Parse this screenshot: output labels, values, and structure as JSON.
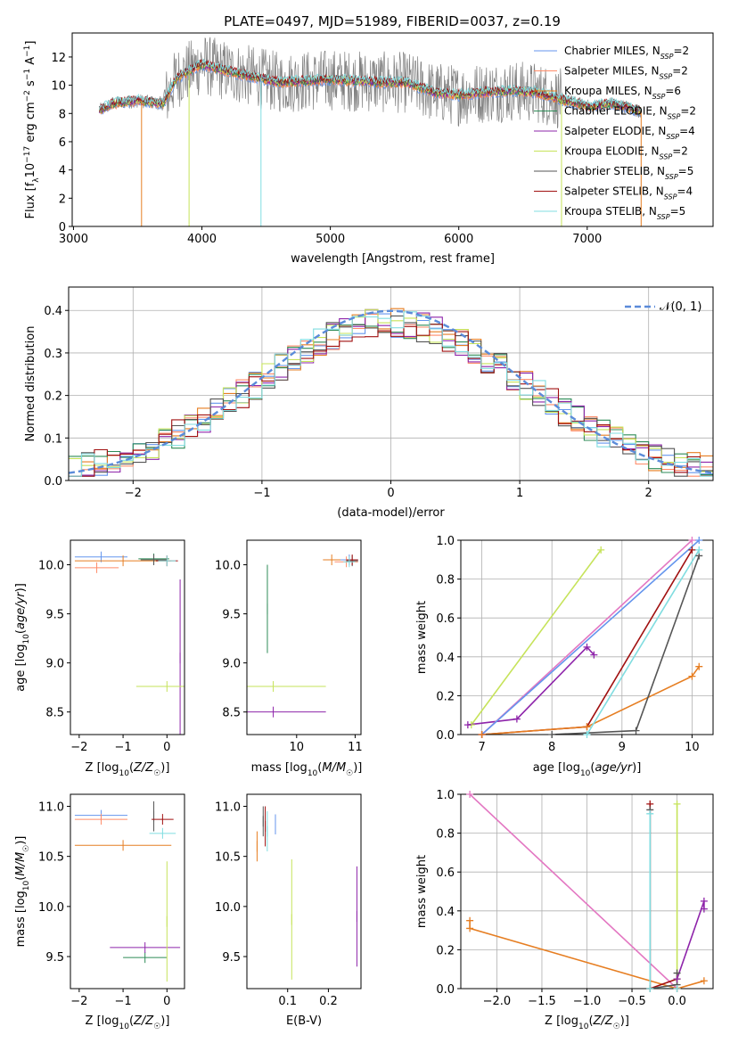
{
  "title": "PLATE=0497, MJD=51989, FIBERID=0037, z=0.19",
  "colors": {
    "Chabrier MILES": "#6495ed",
    "Salpeter MILES": "#ff8c69",
    "Kroupa MILES": "#e67e22",
    "Chabrier ELODIE": "#2e8b57",
    "Salpeter ELODIE": "#8e24aa",
    "Kroupa ELODIE": "#c6e35a",
    "Chabrier STELIB": "#555555",
    "Salpeter STELIB": "#a01010",
    "Kroupa STELIB": "#80dde0",
    "pink": "#e377c2",
    "data": "#808080",
    "normal": "#5b8bd9"
  },
  "chart_data": [
    {
      "type": "line",
      "name": "spectrum",
      "xlabel": "wavelength [Angstrom, rest frame]",
      "ylabel": "Flux [f_λ10^-17 erg cm^-2 s^-1 A^-1]",
      "xlim": [
        2990,
        7980
      ],
      "ylim": [
        0,
        13.7
      ],
      "xticks": [
        3000,
        4000,
        5000,
        6000,
        7000
      ],
      "yticks": [
        0,
        2,
        4,
        6,
        8,
        10,
        12
      ],
      "legend_position": "upper right",
      "legend": [
        {
          "model": "Chabrier MILES",
          "nssp": "2"
        },
        {
          "model": "Salpeter MILES",
          "nssp": "2"
        },
        {
          "model": "Kroupa MILES",
          "nssp": "6"
        },
        {
          "model": "Chabrier ELODIE",
          "nssp": "2"
        },
        {
          "model": "Salpeter ELODIE",
          "nssp": "4"
        },
        {
          "model": "Kroupa ELODIE",
          "nssp": "2"
        },
        {
          "model": "Chabrier STELIB",
          "nssp": "5"
        },
        {
          "model": "Salpeter STELIB",
          "nssp": "4"
        },
        {
          "model": "Kroupa STELIB",
          "nssp": "5"
        }
      ],
      "continuum": {
        "x": [
          3200,
          3300,
          3500,
          3700,
          3800,
          4000,
          4100,
          4400,
          4600,
          5000,
          5400,
          5600,
          5800,
          6000,
          6200,
          6400,
          6600,
          6800,
          7000,
          7200,
          7400
        ],
        "y": [
          8.2,
          8.7,
          8.9,
          8.7,
          10.5,
          11.5,
          11.2,
          10.6,
          10.2,
          10.4,
          10.2,
          10.2,
          9.5,
          9.3,
          9.5,
          9.6,
          9.5,
          9.0,
          8.5,
          8.7,
          8.2
        ]
      },
      "dropouts": [
        {
          "model": "Kroupa MILES",
          "x": 3530
        },
        {
          "model": "Kroupa ELODIE",
          "x": 3900
        },
        {
          "model": "Kroupa STELIB",
          "x": 4460
        },
        {
          "model": "Kroupa ELODIE",
          "x": 6800
        },
        {
          "model": "Kroupa MILES",
          "x": 7420
        }
      ]
    },
    {
      "type": "histogram",
      "name": "residuals",
      "xlabel": "(data-model)/error",
      "ylabel": "Normed distribution",
      "xlim": [
        -2.5,
        2.5
      ],
      "ylim": [
        0,
        0.455
      ],
      "xticks": [
        -2,
        -1,
        0,
        1,
        2
      ],
      "yticks": [
        0.0,
        0.1,
        0.2,
        0.3,
        0.4
      ],
      "bin_width": 0.1,
      "legend": "𝒩(0, 1)",
      "legend_position": "upper right",
      "grid": true
    },
    {
      "type": "scatter",
      "name": "age-Z",
      "xlabel": "Z [log10(Z/Z☉)]",
      "ylabel": "age  [log10(age/yr)]",
      "xlim": [
        -2.2,
        0.4
      ],
      "ylim": [
        8.27,
        10.25
      ],
      "xticks": [
        -2,
        -1,
        0
      ],
      "yticks": [
        8.5,
        9.0,
        9.5,
        10.0
      ],
      "points": [
        {
          "model": "Chabrier MILES",
          "x": -1.5,
          "y": 10.08,
          "xerr": 0.6
        },
        {
          "model": "Salpeter MILES",
          "x": -1.6,
          "y": 9.97,
          "xerr": 0.5
        },
        {
          "model": "Kroupa MILES",
          "x": -1.0,
          "y": 10.04,
          "xerr": 1.1
        },
        {
          "model": "Chabrier ELODIE",
          "x": -0.3,
          "y": 10.06,
          "xerr": 0.35
        },
        {
          "model": "Salpeter ELODIE",
          "x": 0.3,
          "y": 9.05,
          "yerr": 0.8
        },
        {
          "model": "Kroupa ELODIE",
          "x": 0.0,
          "y": 8.76,
          "xerr": 0.7
        },
        {
          "model": "Chabrier STELIB",
          "x": -0.3,
          "y": 10.05,
          "xerr": 0.3
        },
        {
          "model": "Salpeter STELIB",
          "x": 0.0,
          "y": 10.04,
          "xerr": 0.25
        },
        {
          "model": "Kroupa STELIB",
          "x": 0.0,
          "y": 10.04,
          "xerr": 0.2
        }
      ]
    },
    {
      "type": "scatter",
      "name": "age-mass",
      "xlabel": "mass [log10(M/M☉)]",
      "ylabel": "",
      "xlim": [
        9.15,
        11.1
      ],
      "ylim": [
        8.27,
        10.25
      ],
      "xticks": [
        10,
        11
      ],
      "yticks": [
        8.5,
        9.0,
        9.5,
        10.0
      ],
      "points": [
        {
          "model": "Chabrier MILES",
          "x": 10.9,
          "y": 10.05,
          "xerr": 0.15
        },
        {
          "model": "Salpeter MILES",
          "x": 10.85,
          "y": 10.03,
          "xerr": 0.2
        },
        {
          "model": "Kroupa MILES",
          "x": 10.6,
          "y": 10.05,
          "xerr": 0.15
        },
        {
          "model": "Chabrier ELODIE",
          "x": 9.5,
          "y": 9.55,
          "yerr": 0.45
        },
        {
          "model": "Salpeter ELODIE",
          "x": 9.6,
          "y": 8.5,
          "xerr": 0.9
        },
        {
          "model": "Kroupa ELODIE",
          "x": 9.6,
          "y": 8.76,
          "xerr": 0.9
        },
        {
          "model": "Chabrier STELIB",
          "x": 10.95,
          "y": 10.04,
          "xerr": 0.1
        },
        {
          "model": "Salpeter STELIB",
          "x": 10.95,
          "y": 10.05,
          "xerr": 0.1
        },
        {
          "model": "Kroupa STELIB",
          "x": 10.9,
          "y": 10.03,
          "xerr": 0.1
        }
      ]
    },
    {
      "type": "line",
      "name": "mass-weight-age",
      "xlabel": "age  [log10(age/yr)]",
      "ylabel": "mass weight",
      "xlim": [
        6.7,
        10.3
      ],
      "ylim": [
        0,
        1.0
      ],
      "xticks": [
        7,
        8,
        9,
        10
      ],
      "yticks": [
        0.0,
        0.2,
        0.4,
        0.6,
        0.8,
        1.0
      ],
      "grid": true,
      "series": [
        {
          "model": "Kroupa ELODIE",
          "x": [
            6.85,
            8.7
          ],
          "y": [
            0.05,
            0.95
          ]
        },
        {
          "model": "Salpeter ELODIE",
          "x": [
            6.8,
            7.5,
            8.5,
            8.6
          ],
          "y": [
            0.05,
            0.08,
            0.45,
            0.41
          ]
        },
        {
          "model": "pink",
          "x": [
            7.0,
            10.0
          ],
          "y": [
            0.0,
            1.0
          ]
        },
        {
          "model": "Chabrier MILES",
          "x": [
            7.0,
            10.1
          ],
          "y": [
            0.0,
            1.0
          ]
        },
        {
          "model": "Salpeter STELIB",
          "x": [
            7.0,
            8.5,
            10.0
          ],
          "y": [
            0.0,
            0.04,
            0.95
          ]
        },
        {
          "model": "Kroupa MILES",
          "x": [
            7.0,
            8.5,
            10.0,
            10.1
          ],
          "y": [
            0.0,
            0.04,
            0.3,
            0.35
          ]
        },
        {
          "model": "Chabrier STELIB",
          "x": [
            8.0,
            9.2,
            10.1
          ],
          "y": [
            0.0,
            0.02,
            0.92
          ]
        },
        {
          "model": "Kroupa STELIB",
          "x": [
            8.5,
            10.1
          ],
          "y": [
            0.0,
            0.95
          ]
        }
      ]
    },
    {
      "type": "scatter",
      "name": "mass-Z",
      "xlabel": "Z [log10(Z/Z☉)]",
      "ylabel": "mass [log10(M/M☉)]",
      "xlim": [
        -2.2,
        0.4
      ],
      "ylim": [
        9.18,
        11.12
      ],
      "xticks": [
        -2,
        -1,
        0
      ],
      "yticks": [
        9.5,
        10.0,
        10.5,
        11.0
      ],
      "points": [
        {
          "model": "Chabrier MILES",
          "x": -1.5,
          "y": 10.91,
          "xerr": 0.6
        },
        {
          "model": "Salpeter MILES",
          "x": -1.5,
          "y": 10.87,
          "xerr": 0.6
        },
        {
          "model": "Kroupa MILES",
          "x": -1.0,
          "y": 10.61,
          "xerr": 1.1
        },
        {
          "model": "Chabrier ELODIE",
          "x": -0.5,
          "y": 9.49,
          "xerr": 0.5
        },
        {
          "model": "Salpeter ELODIE",
          "x": -0.5,
          "y": 9.59,
          "xerr": 0.8
        },
        {
          "model": "Kroupa ELODIE",
          "x": 0.0,
          "y": 9.85,
          "yerr": 0.6
        },
        {
          "model": "Chabrier STELIB",
          "x": -0.3,
          "y": 10.9,
          "yerr": 0.15
        },
        {
          "model": "Salpeter STELIB",
          "x": -0.1,
          "y": 10.87,
          "xerr": 0.25
        },
        {
          "model": "Kroupa STELIB",
          "x": -0.1,
          "y": 10.73,
          "xerr": 0.3
        }
      ]
    },
    {
      "type": "scatter",
      "name": "mass-EBV",
      "xlabel": "E(B-V)",
      "ylabel": "",
      "xlim": [
        0.0,
        0.28
      ],
      "ylim": [
        9.18,
        11.12
      ],
      "xticks": [
        0.1,
        0.2
      ],
      "yticks": [
        9.5,
        10.0,
        10.5,
        11.0
      ],
      "points": [
        {
          "model": "Kroupa MILES",
          "x": 0.025,
          "y": 10.6,
          "yerr": 0.15
        },
        {
          "model": "Chabrier STELIB",
          "x": 0.04,
          "y": 10.85,
          "yerr": 0.15
        },
        {
          "model": "Salpeter STELIB",
          "x": 0.045,
          "y": 10.8,
          "yerr": 0.2
        },
        {
          "model": "Chabrier MILES",
          "x": 0.07,
          "y": 10.82,
          "yerr": 0.1
        },
        {
          "model": "Kroupa STELIB",
          "x": 0.05,
          "y": 10.75,
          "yerr": 0.2
        },
        {
          "model": "Kroupa ELODIE",
          "x": 0.11,
          "y": 9.87,
          "yerr": 0.6
        },
        {
          "model": "Salpeter ELODIE",
          "x": 0.27,
          "y": 9.9,
          "yerr": 0.5
        }
      ]
    },
    {
      "type": "line",
      "name": "mass-weight-Z",
      "xlabel": "Z [log10(Z/Z☉)]",
      "ylabel": "mass weight",
      "xlim": [
        -2.4,
        0.4
      ],
      "ylim": [
        0,
        1.0
      ],
      "xticks": [
        -2.0,
        -1.5,
        -1.0,
        -0.5,
        0.0
      ],
      "yticks": [
        0.0,
        0.2,
        0.4,
        0.6,
        0.8,
        1.0
      ],
      "grid": true,
      "series": [
        {
          "model": "pink",
          "x": [
            -2.3,
            0.0
          ],
          "y": [
            1.0,
            0.0
          ]
        },
        {
          "model": "Kroupa MILES",
          "x": [
            -2.3,
            -2.3,
            0.0,
            0.3
          ],
          "y": [
            0.35,
            0.31,
            0.0,
            0.04
          ]
        },
        {
          "model": "Salpeter STELIB",
          "x": [
            -0.3,
            -0.3,
            0.0
          ],
          "y": [
            0.95,
            0.0,
            0.05
          ]
        },
        {
          "model": "Chabrier STELIB",
          "x": [
            -0.3,
            -0.3,
            0.0,
            0.0
          ],
          "y": [
            0.92,
            0.0,
            0.02,
            0.08
          ]
        },
        {
          "model": "Kroupa STELIB",
          "x": [
            -0.3,
            -0.3,
            0.0
          ],
          "y": [
            0.9,
            0.0,
            0.0
          ]
        },
        {
          "model": "Kroupa ELODIE",
          "x": [
            0.0,
            0.0
          ],
          "y": [
            0.95,
            0.05
          ]
        },
        {
          "model": "Salpeter ELODIE",
          "x": [
            0.0,
            0.3,
            0.3
          ],
          "y": [
            0.05,
            0.45,
            0.41
          ]
        }
      ]
    }
  ]
}
